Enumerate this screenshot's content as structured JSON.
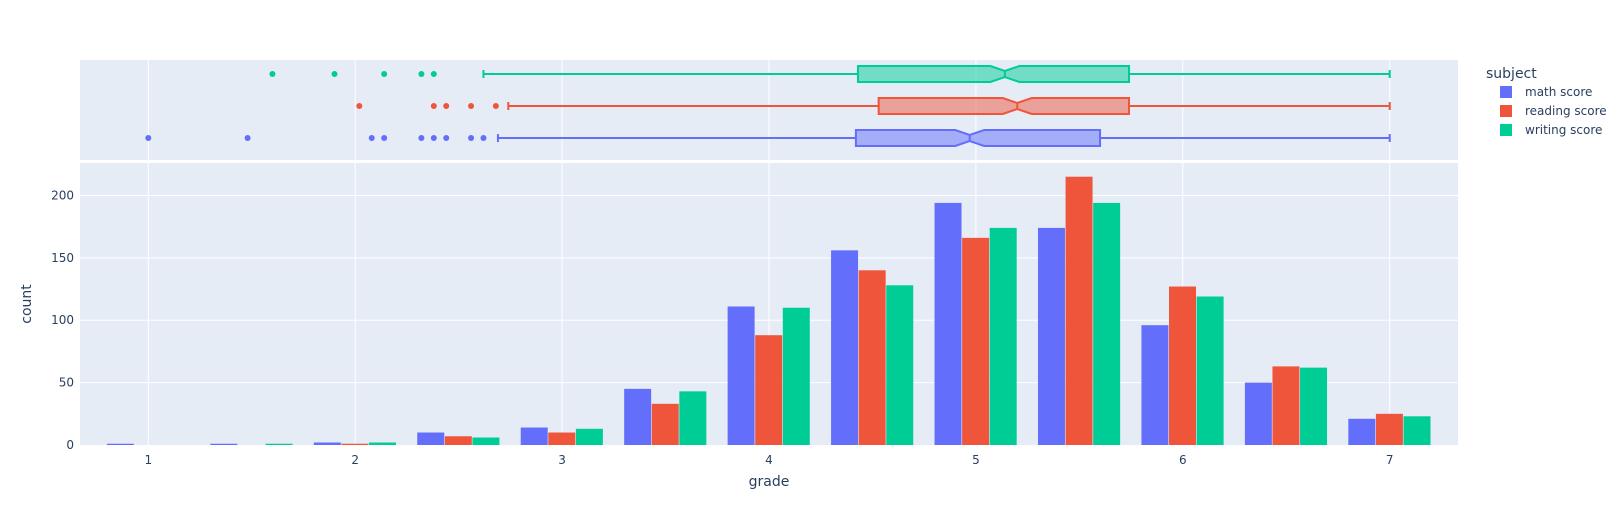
{
  "chart_data": {
    "type": "bar",
    "xlabel": "grade",
    "ylabel": "count",
    "xlim": [
      0.67,
      7.33
    ],
    "ylim": [
      0,
      226
    ],
    "x_ticks": [
      1,
      2,
      3,
      4,
      5,
      6,
      7
    ],
    "y_ticks": [
      0,
      50,
      100,
      150,
      200
    ],
    "grid": true,
    "legend": {
      "title": "subject",
      "position": "top-right"
    },
    "bin_centers": [
      1,
      1.5,
      2,
      2.5,
      3,
      3.5,
      4,
      4.5,
      5,
      5.5,
      6,
      6.5,
      7
    ],
    "series": [
      {
        "name": "math score",
        "color": "#636efa",
        "values": [
          1,
          1,
          2,
          10,
          14,
          45,
          111,
          156,
          194,
          174,
          96,
          50,
          21
        ]
      },
      {
        "name": "reading score",
        "color": "#ef553b",
        "values": [
          0,
          0,
          1,
          7,
          10,
          33,
          88,
          140,
          166,
          215,
          127,
          63,
          25
        ]
      },
      {
        "name": "writing score",
        "color": "#00cc96",
        "values": [
          0,
          1,
          2,
          6,
          13,
          43,
          110,
          128,
          174,
          194,
          119,
          62,
          23
        ]
      }
    ],
    "marginal_box": [
      {
        "name": "math score",
        "color": "#636efa",
        "q1": 4.42,
        "median": 4.97,
        "q3": 5.6,
        "notch_low": 4.9,
        "notch_high": 5.04,
        "whisker_low": 2.69,
        "whisker_high": 7,
        "outliers": [
          1,
          1.48,
          2.08,
          2.14,
          2.32,
          2.38,
          2.44,
          2.56,
          2.62
        ]
      },
      {
        "name": "reading score",
        "color": "#ef553b",
        "q1": 4.53,
        "median": 5.2,
        "q3": 5.74,
        "notch_low": 5.13,
        "notch_high": 5.27,
        "whisker_low": 2.74,
        "whisker_high": 7,
        "outliers": [
          2.02,
          2.38,
          2.44,
          2.56,
          2.68
        ]
      },
      {
        "name": "writing score",
        "color": "#00cc96",
        "q1": 4.43,
        "median": 5.14,
        "q3": 5.74,
        "notch_low": 5.07,
        "notch_high": 5.21,
        "whisker_low": 2.62,
        "whisker_high": 7,
        "outliers": [
          1.6,
          1.9,
          2.14,
          2.32,
          2.38
        ]
      }
    ]
  }
}
